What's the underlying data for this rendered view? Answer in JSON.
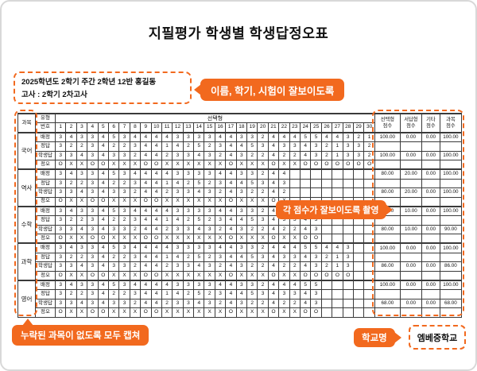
{
  "page": {
    "title": "지필평가 학생별 학생답정오표"
  },
  "colors": {
    "accent": "#F2691E",
    "card_border": "#D8D8D8",
    "table_border": "#3A3A3A",
    "text": "#111111"
  },
  "info_box": {
    "line1": "2025학년도 2학기 주간 2학년 12반 홍길동",
    "line2": "고사 : 2학기 2차고사"
  },
  "callouts": {
    "top": "이름, 학기, 시험이 잘보이도록",
    "middle": "각 점수가 잘보이도록 촬영",
    "bottom": "누락된 과목이 없도록 모두 캡쳐",
    "school_label": "학교명",
    "school_name": "엠베중학교"
  },
  "table": {
    "corner_header": "과목",
    "type_header": "유형",
    "number_header": "번호",
    "choice_header": "선택형",
    "question_numbers": [
      1,
      2,
      3,
      4,
      5,
      6,
      7,
      8,
      9,
      10,
      11,
      12,
      13,
      14,
      15,
      16,
      17,
      18,
      19,
      20,
      21,
      22,
      23,
      24,
      25,
      26,
      27,
      28,
      29,
      30
    ],
    "score_headers": [
      "선택형\n점수",
      "서답형\n점수",
      "기타\n점수",
      "과목\n점수"
    ],
    "rows": [
      {
        "key": "assigned",
        "label": "배정"
      },
      {
        "key": "correct",
        "label": "정답"
      },
      {
        "key": "student",
        "label": "학생답"
      },
      {
        "key": "result",
        "label": "정오"
      }
    ],
    "subjects": [
      {
        "name": "국어",
        "assigned": [
          3,
          4,
          3,
          3,
          4,
          5,
          3,
          4,
          4,
          4,
          4,
          3,
          3,
          3,
          3,
          4,
          4,
          3,
          3,
          2,
          4,
          4,
          4,
          5,
          5,
          4,
          4,
          3,
          2,
          1
        ],
        "correct": [
          3,
          2,
          2,
          3,
          4,
          2,
          2,
          3,
          4,
          4,
          1,
          4,
          2,
          5,
          2,
          3,
          4,
          4,
          5,
          3,
          4,
          3,
          3,
          4,
          3,
          2,
          1,
          3,
          3,
          2
        ],
        "student": [
          3,
          3,
          4,
          3,
          4,
          3,
          3,
          2,
          4,
          4,
          2,
          3,
          3,
          4,
          3,
          2,
          4,
          3,
          2,
          2,
          4,
          2,
          2,
          4,
          3,
          2,
          1,
          3,
          3,
          2
        ],
        "result": [
          "O",
          "X",
          "X",
          "O",
          "O",
          "X",
          "X",
          "X",
          "O",
          "O",
          "X",
          "X",
          "X",
          "X",
          "X",
          "X",
          "O",
          "X",
          "X",
          "X",
          "O",
          "X",
          "X",
          "O",
          "O",
          "O",
          "O",
          "O",
          "O",
          "O"
        ],
        "scores_assigned": [
          "100.00",
          "0.00",
          "0.00",
          "100.00"
        ],
        "scores_student": [
          "100.00",
          "0.00",
          "0.00",
          "100.00"
        ]
      },
      {
        "name": "역사",
        "assigned": [
          3,
          4,
          3,
          3,
          4,
          5,
          3,
          4,
          4,
          4,
          4,
          3,
          3,
          3,
          3,
          4,
          4,
          3,
          3,
          2,
          4,
          4
        ],
        "correct": [
          3,
          2,
          2,
          3,
          4,
          2,
          2,
          3,
          4,
          4,
          1,
          4,
          2,
          5,
          2,
          3,
          4,
          4,
          5,
          3,
          4,
          3
        ],
        "student": [
          3,
          3,
          4,
          3,
          4,
          3,
          3,
          2,
          4,
          4,
          2,
          3,
          3,
          4,
          3,
          2,
          4,
          3,
          2,
          2,
          4,
          2
        ],
        "result": [
          "O",
          "X",
          "X",
          "O",
          "O",
          "X",
          "X",
          "X",
          "O",
          "O",
          "X",
          "X",
          "X",
          "X",
          "X",
          "X",
          "O",
          "X",
          "X",
          "X",
          "O",
          "X"
        ],
        "scores_assigned": [
          "80.00",
          "20.00",
          "0.00",
          "100.00"
        ],
        "scores_student": [
          "80.00",
          "20.00",
          "0.00",
          "100.00"
        ]
      },
      {
        "name": "수학",
        "assigned": [
          3,
          4,
          3,
          3,
          4,
          5,
          3,
          4,
          4,
          4,
          4,
          3,
          3,
          3,
          3,
          4,
          4,
          3,
          3,
          2,
          4,
          4,
          4,
          5,
          5
        ],
        "correct": [
          3,
          2,
          2,
          3,
          4,
          2,
          2,
          3,
          4,
          4,
          1,
          4,
          2,
          5,
          2,
          3,
          4,
          4,
          5,
          3,
          4,
          3,
          3,
          4,
          3
        ],
        "student": [
          3,
          3,
          4,
          3,
          4,
          3,
          3,
          2,
          4,
          4,
          2,
          3,
          3,
          4,
          3,
          2,
          4,
          3,
          2,
          2,
          4,
          2,
          2,
          4,
          3
        ],
        "result": [
          "O",
          "X",
          "X",
          "O",
          "O",
          "X",
          "X",
          "X",
          "O",
          "O",
          "X",
          "X",
          "X",
          "X",
          "X",
          "X",
          "O",
          "X",
          "X",
          "X",
          "O",
          "X",
          "X",
          "O",
          "O"
        ],
        "scores_assigned": [
          "90.00",
          "10.00",
          "0.00",
          "100.00"
        ],
        "scores_student": [
          "80.00",
          "10.00",
          "0.00",
          "90.00"
        ]
      },
      {
        "name": "과학",
        "assigned": [
          3,
          4,
          3,
          3,
          4,
          5,
          3,
          4,
          4,
          4,
          4,
          3,
          3,
          3,
          3,
          4,
          4,
          3,
          3,
          2,
          4,
          4,
          4,
          5,
          5,
          4,
          4,
          3
        ],
        "correct": [
          3,
          2,
          2,
          3,
          4,
          2,
          2,
          3,
          4,
          4,
          1,
          4,
          2,
          5,
          2,
          3,
          4,
          4,
          5,
          3,
          4,
          3,
          3,
          4,
          3,
          2,
          1,
          3
        ],
        "student": [
          3,
          3,
          4,
          3,
          4,
          3,
          3,
          2,
          4,
          4,
          2,
          3,
          3,
          4,
          3,
          2,
          4,
          3,
          2,
          2,
          4,
          2,
          2,
          4,
          3,
          2,
          1,
          3
        ],
        "result": [
          "O",
          "X",
          "X",
          "O",
          "O",
          "X",
          "X",
          "X",
          "O",
          "O",
          "X",
          "X",
          "X",
          "X",
          "X",
          "X",
          "O",
          "X",
          "X",
          "X",
          "O",
          "X",
          "X",
          "O",
          "O",
          "O",
          "O",
          "O"
        ],
        "scores_assigned": [
          "100.00",
          "0.00",
          "0.00",
          "100.00"
        ],
        "scores_student": [
          "86.00",
          "0.00",
          "0.00",
          "86.00"
        ]
      },
      {
        "name": "영어",
        "assigned": [
          3,
          4,
          3,
          3,
          4,
          5,
          3,
          4,
          4,
          4,
          4,
          3,
          3,
          3,
          3,
          4,
          4,
          3,
          3,
          2,
          4,
          4,
          4,
          5,
          5
        ],
        "correct": [
          3,
          2,
          2,
          3,
          4,
          2,
          2,
          3,
          4,
          4,
          1,
          4,
          2,
          5,
          2,
          3,
          4,
          4,
          5,
          3,
          4,
          3,
          3,
          4,
          3
        ],
        "student": [
          3,
          3,
          4,
          3,
          4,
          3,
          3,
          2,
          4,
          4,
          2,
          3,
          3,
          4,
          3,
          2,
          4,
          3,
          2,
          2,
          4,
          2,
          2,
          4,
          3
        ],
        "result": [
          "O",
          "X",
          "X",
          "O",
          "O",
          "X",
          "X",
          "X",
          "O",
          "O",
          "X",
          "X",
          "X",
          "X",
          "X",
          "X",
          "O",
          "X",
          "X",
          "X",
          "O",
          "X",
          "X",
          "O",
          "O"
        ],
        "scores_assigned": [
          "100.00",
          "0.00",
          "0.00",
          "100.00"
        ],
        "scores_student": [
          "68.00",
          "0.00",
          "0.00",
          "68.00"
        ]
      }
    ]
  }
}
